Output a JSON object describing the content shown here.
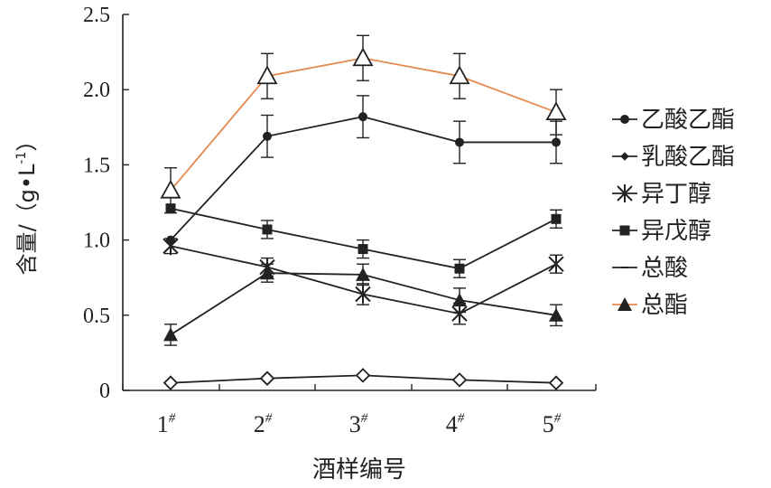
{
  "chart_data": {
    "type": "line",
    "title": "",
    "xlabel": "酒样编号",
    "ylabel": "含量/（g•L-1）",
    "ylabel_parts": {
      "prefix": "含量/（g•L",
      "sup": "-1",
      "suffix": "）"
    },
    "categories": [
      {
        "base": "1",
        "sup": "#"
      },
      {
        "base": "2",
        "sup": "#"
      },
      {
        "base": "3",
        "sup": "#"
      },
      {
        "base": "4",
        "sup": "#"
      },
      {
        "base": "5",
        "sup": "#"
      }
    ],
    "ylim": [
      0,
      2.5
    ],
    "yticks": [
      "0",
      "0.5",
      "1.0",
      "1.5",
      "2.0",
      "2.5"
    ],
    "legend_position": "right",
    "series": [
      {
        "name": "乙酸乙酯",
        "values": [
          1.0,
          1.69,
          1.82,
          1.65,
          1.65
        ],
        "errors": [
          0.0,
          0.14,
          0.14,
          0.14,
          0.14
        ],
        "marker": "circle",
        "legend_marker": "circle",
        "color": "#222222"
      },
      {
        "name": "乳酸乙酯",
        "values": [
          0.05,
          0.08,
          0.1,
          0.07,
          0.05
        ],
        "errors": [
          0,
          0,
          0,
          0,
          0
        ],
        "marker": "diamond",
        "legend_marker": "small-diamond",
        "color": "#222222"
      },
      {
        "name": "异丁醇",
        "values": [
          0.96,
          0.82,
          0.64,
          0.51,
          0.84
        ],
        "errors": [
          0.05,
          0.06,
          0.07,
          0.07,
          0.06
        ],
        "marker": "star",
        "legend_marker": "star",
        "color": "#222222"
      },
      {
        "name": "异戊醇",
        "values": [
          1.21,
          1.07,
          0.94,
          0.81,
          1.14
        ],
        "errors": [
          0.0,
          0.06,
          0.06,
          0.06,
          0.06
        ],
        "marker": "square",
        "legend_marker": "square",
        "color": "#222222"
      },
      {
        "name": "总酸",
        "values": [
          0.37,
          0.78,
          0.77,
          0.6,
          0.5
        ],
        "errors": [
          0.07,
          0.06,
          0.07,
          0.08,
          0.07
        ],
        "marker": "filled-triangle",
        "legend_marker": "dash",
        "color": "#222222"
      },
      {
        "name": "总酯",
        "values": [
          1.33,
          2.09,
          2.21,
          2.09,
          1.85
        ],
        "errors": [
          0.15,
          0.15,
          0.15,
          0.15,
          0.15
        ],
        "marker": "open-triangle",
        "legend_marker": "filled-triangle",
        "color": "#e58a4f"
      }
    ]
  }
}
